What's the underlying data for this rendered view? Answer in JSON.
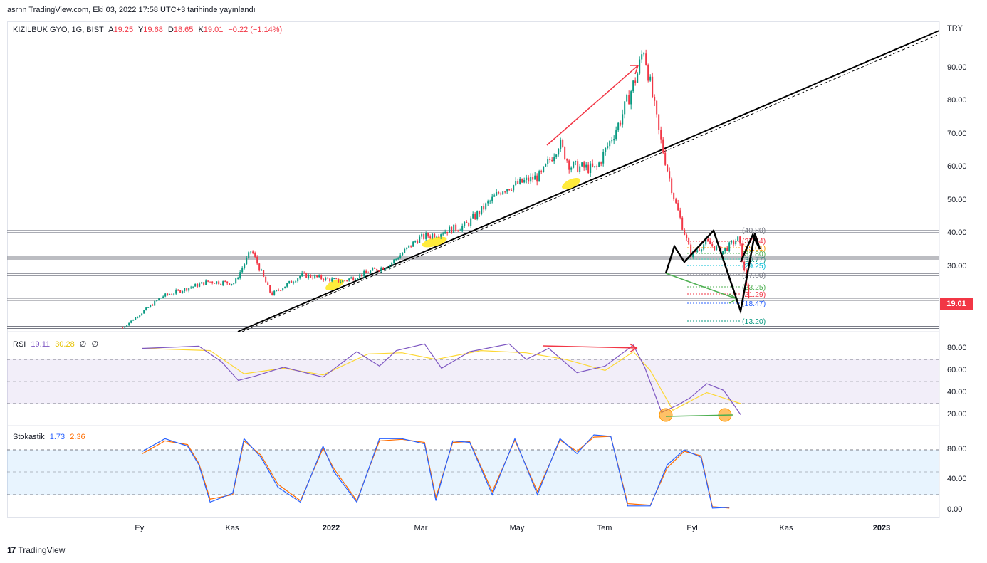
{
  "published": "asrnn TradingView.com, Eki 03, 2022 17:58 UTC+3 tarihinde yayınlandı",
  "symbol": {
    "name": "KIZILBUK GYO, 1G, BIST",
    "o_label": "A",
    "o": "19.25",
    "h_label": "Y",
    "h": "19.68",
    "l_label": "D",
    "l": "18.65",
    "c_label": "K",
    "c": "19.01",
    "change": "−0.22 (−1.14%)"
  },
  "currency": "TRY",
  "last_price": "19.01",
  "rsi": {
    "label": "RSI",
    "value": "19.11",
    "ma": "30.28",
    "extra1": "∅",
    "extra2": "∅"
  },
  "stoch": {
    "label": "Stokastik",
    "k": "1.73",
    "d": "2.36"
  },
  "price_axis": [
    "90.00",
    "80.00",
    "70.00",
    "60.00",
    "50.00",
    "40.00",
    "30.00"
  ],
  "rsi_axis": [
    "80.00",
    "60.00",
    "40.00",
    "20.00"
  ],
  "stoch_axis": [
    "80.00",
    "40.00",
    "0.00"
  ],
  "time_axis": [
    {
      "label": "Eyl",
      "bold": false
    },
    {
      "label": "Kas",
      "bold": false
    },
    {
      "label": "2022",
      "bold": true
    },
    {
      "label": "Mar",
      "bold": false
    },
    {
      "label": "May",
      "bold": false
    },
    {
      "label": "Tem",
      "bold": false
    },
    {
      "label": "Eyl",
      "bold": false
    },
    {
      "label": "Kas",
      "bold": false
    },
    {
      "label": "2023",
      "bold": true
    }
  ],
  "fib_levels": [
    {
      "label": "(40.80)",
      "color": "#787b86"
    },
    {
      "label": "(37.54)",
      "color": "#f23645"
    },
    {
      "label": "(35.01)",
      "color": "#ff9800"
    },
    {
      "label": "(32.80)",
      "color": "#4caf50"
    },
    {
      "label": "(30.77)",
      "color": "#089981"
    },
    {
      "label": "(29.25)",
      "color": "#00bcd4"
    },
    {
      "label": "(27.00)",
      "color": "#787b86"
    },
    {
      "label": "(23.25)",
      "color": "#4caf50"
    },
    {
      "label": "(21.29)",
      "color": "#f23645"
    },
    {
      "label": "(18.47)",
      "color": "#2962ff"
    },
    {
      "label": "(13.20)",
      "color": "#089981"
    }
  ],
  "brand": "TradingView",
  "colors": {
    "up": "#089981",
    "down": "#f23645",
    "rsi_line": "#7e57c2",
    "rsi_ma": "#fdd835",
    "stoch_k": "#2962ff",
    "stoch_d": "#ff6d00"
  },
  "chart_data": [
    {
      "type": "candlestick",
      "title": "KIZILBUK GYO, 1G, BIST",
      "x_range": [
        "2021-08",
        "2023-01"
      ],
      "ylim": [
        10,
        100
      ],
      "points": [
        {
          "t": "2021-08-20",
          "close": 11.0
        },
        {
          "t": "2021-09-15",
          "close": 20.5
        },
        {
          "t": "2021-10-15",
          "close": 25.0
        },
        {
          "t": "2021-11-01",
          "close": 24.5
        },
        {
          "t": "2021-11-12",
          "close": 34.5
        },
        {
          "t": "2021-11-25",
          "close": 21.0
        },
        {
          "t": "2021-12-15",
          "close": 27.0
        },
        {
          "t": "2022-01-10",
          "close": 25.0
        },
        {
          "t": "2022-02-10",
          "close": 30.0
        },
        {
          "t": "2022-03-01",
          "close": 38.0
        },
        {
          "t": "2022-04-01",
          "close": 42.0
        },
        {
          "t": "2022-04-25",
          "close": 53.0
        },
        {
          "t": "2022-05-20",
          "close": 57.0
        },
        {
          "t": "2022-06-01",
          "close": 67.0
        },
        {
          "t": "2022-06-08",
          "close": 60.0
        },
        {
          "t": "2022-06-25",
          "close": 59.0
        },
        {
          "t": "2022-07-10",
          "close": 73.0
        },
        {
          "t": "2022-07-22",
          "close": 88.0
        },
        {
          "t": "2022-07-26",
          "close": 96.0
        },
        {
          "t": "2022-08-05",
          "close": 70.0
        },
        {
          "t": "2022-08-15",
          "close": 50.0
        },
        {
          "t": "2022-08-26",
          "close": 33.0
        },
        {
          "t": "2022-09-05",
          "close": 37.0
        },
        {
          "t": "2022-09-15",
          "close": 34.0
        },
        {
          "t": "2022-09-26",
          "close": 38.0
        },
        {
          "t": "2022-10-03",
          "close": 19.01
        }
      ],
      "horizontal_levels": [
        40.0,
        32.0,
        27.0,
        19.5,
        11.0
      ]
    },
    {
      "type": "line",
      "title": "RSI",
      "ylim": [
        10,
        95
      ],
      "bands": [
        30,
        50,
        70
      ],
      "series": [
        {
          "name": "RSI",
          "points": [
            [
              0,
              80
            ],
            [
              10,
              82
            ],
            [
              14,
              68
            ],
            [
              17,
              51
            ],
            [
              20,
              55
            ],
            [
              25,
              63
            ],
            [
              32,
              54
            ],
            [
              38,
              77
            ],
            [
              42,
              64
            ],
            [
              45,
              78
            ],
            [
              50,
              84
            ],
            [
              53,
              62
            ],
            [
              58,
              77
            ],
            [
              65,
              84
            ],
            [
              68,
              70
            ],
            [
              72,
              80
            ],
            [
              77,
              58
            ],
            [
              82,
              64
            ],
            [
              87,
              83
            ],
            [
              89,
              63
            ],
            [
              92,
              22
            ],
            [
              95,
              29
            ],
            [
              97,
              35
            ],
            [
              100,
              48
            ],
            [
              103,
              42
            ],
            [
              106,
              20
            ]
          ]
        },
        {
          "name": "MA",
          "points": [
            [
              0,
              80
            ],
            [
              12,
              78
            ],
            [
              18,
              57
            ],
            [
              25,
              62
            ],
            [
              32,
              56
            ],
            [
              40,
              75
            ],
            [
              46,
              76
            ],
            [
              52,
              70
            ],
            [
              60,
              78
            ],
            [
              68,
              76
            ],
            [
              75,
              70
            ],
            [
              82,
              60
            ],
            [
              87,
              77
            ],
            [
              90,
              60
            ],
            [
              94,
              24
            ],
            [
              100,
              40
            ],
            [
              106,
              30
            ]
          ]
        }
      ]
    },
    {
      "type": "line",
      "title": "Stokastik",
      "ylim": [
        -5,
        100
      ],
      "bands": [
        20,
        50,
        80
      ],
      "series": [
        {
          "name": "K",
          "points": [
            [
              0,
              78
            ],
            [
              4,
              95
            ],
            [
              8,
              85
            ],
            [
              10,
              60
            ],
            [
              12,
              10
            ],
            [
              16,
              22
            ],
            [
              18,
              95
            ],
            [
              21,
              70
            ],
            [
              24,
              30
            ],
            [
              28,
              10
            ],
            [
              32,
              85
            ],
            [
              34,
              50
            ],
            [
              38,
              10
            ],
            [
              42,
              95
            ],
            [
              46,
              95
            ],
            [
              50,
              88
            ],
            [
              52,
              12
            ],
            [
              55,
              92
            ],
            [
              58,
              90
            ],
            [
              62,
              20
            ],
            [
              66,
              95
            ],
            [
              70,
              20
            ],
            [
              74,
              95
            ],
            [
              77,
              75
            ],
            [
              80,
              100
            ],
            [
              83,
              98
            ],
            [
              86,
              5
            ],
            [
              90,
              5
            ],
            [
              93,
              60
            ],
            [
              96,
              80
            ],
            [
              99,
              70
            ],
            [
              101,
              2
            ],
            [
              104,
              3
            ]
          ]
        },
        {
          "name": "D",
          "points": [
            [
              0,
              75
            ],
            [
              4,
              92
            ],
            [
              8,
              87
            ],
            [
              10,
              62
            ],
            [
              12,
              14
            ],
            [
              16,
              20
            ],
            [
              18,
              92
            ],
            [
              21,
              73
            ],
            [
              24,
              34
            ],
            [
              28,
              12
            ],
            [
              32,
              82
            ],
            [
              34,
              54
            ],
            [
              38,
              12
            ],
            [
              42,
              92
            ],
            [
              46,
              94
            ],
            [
              50,
              90
            ],
            [
              52,
              16
            ],
            [
              55,
              90
            ],
            [
              58,
              91
            ],
            [
              62,
              24
            ],
            [
              66,
              93
            ],
            [
              70,
              24
            ],
            [
              74,
              93
            ],
            [
              77,
              78
            ],
            [
              80,
              97
            ],
            [
              83,
              98
            ],
            [
              86,
              8
            ],
            [
              90,
              6
            ],
            [
              93,
              56
            ],
            [
              96,
              78
            ],
            [
              99,
              72
            ],
            [
              101,
              4
            ],
            [
              104,
              2
            ]
          ]
        }
      ]
    }
  ]
}
